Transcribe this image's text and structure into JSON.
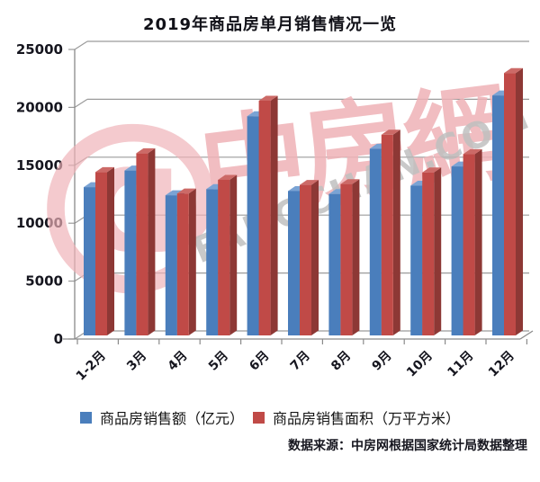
{
  "title": "2019年商品房单月销售情况一览",
  "footer": {
    "source": "数据来源：中房网根据国家统计局数据整理"
  },
  "watermark": {
    "at_symbol": "@",
    "brand": "中房網",
    "domain": "FANGCHAN.COM",
    "pink": "#efb2b7",
    "gray": "#b5b5b5"
  },
  "colors": {
    "grid": "#9b9b9b",
    "axis": "#8a8a8a",
    "text": "#16161f",
    "background": "#ffffff"
  },
  "chart_data": {
    "type": "bar",
    "style": "3d-clustered",
    "title": "2019年商品房单月销售情况一览",
    "categories": [
      "1-2月",
      "3月",
      "4月",
      "5月",
      "6月",
      "7月",
      "8月",
      "9月",
      "10月",
      "11月",
      "12月"
    ],
    "series": [
      {
        "name": "商品房销售额（亿元）",
        "color": "#4a7ebc",
        "color_top": "#7aa3d4",
        "color_side": "#2f5a8d",
        "values": [
          12803,
          14236,
          12102,
          12632,
          18925,
          12464,
          12211,
          16118,
          12926,
          14589,
          20719
        ]
      },
      {
        "name": "商品房销售面积（万平方米）",
        "color": "#c04a47",
        "color_top": "#cc6a67",
        "color_side": "#8d3835",
        "values": [
          14102,
          15727,
          12256,
          13433,
          20268,
          12997,
          13066,
          17330,
          14072,
          15654,
          22653
        ]
      }
    ],
    "xlabel": "",
    "ylabel": "",
    "ylim": [
      0,
      25000
    ],
    "ytick_step": 5000,
    "grid": true,
    "legend_position": "bottom"
  }
}
